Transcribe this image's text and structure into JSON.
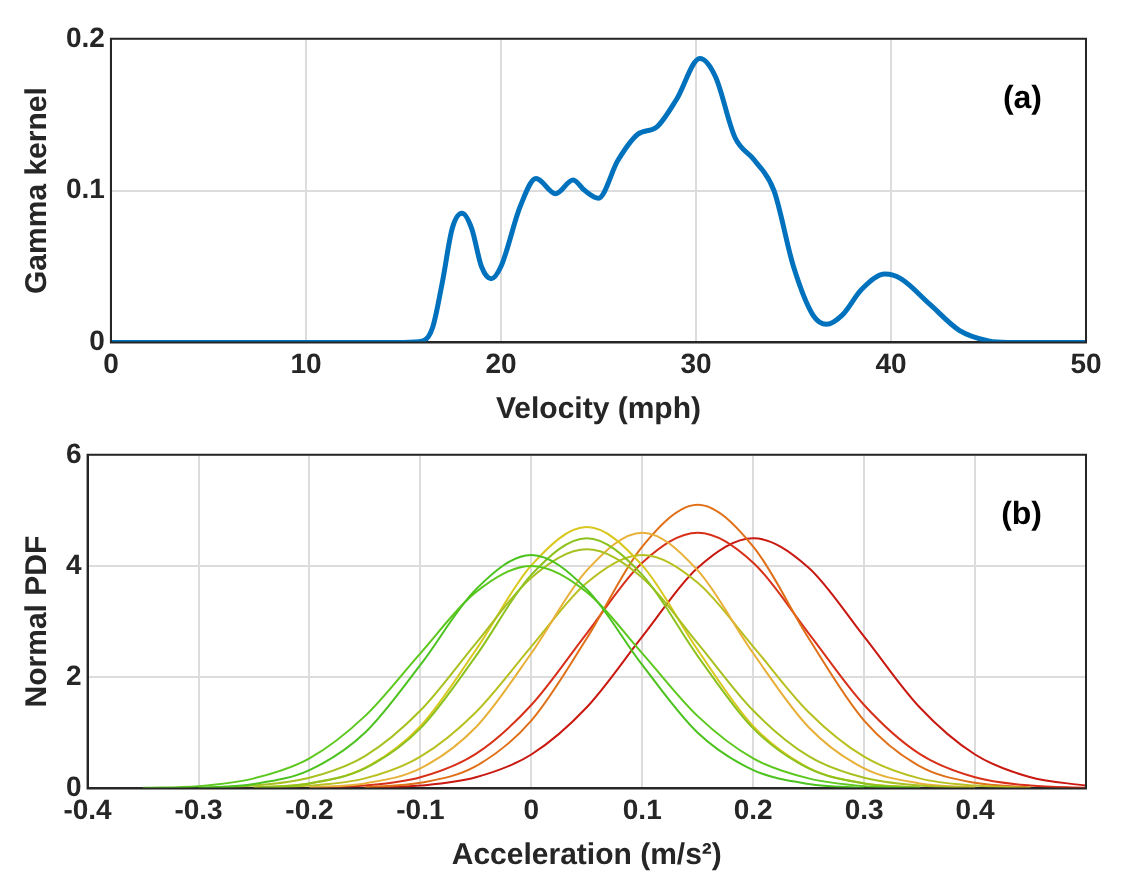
{
  "chart_data": [
    {
      "type": "line",
      "xlabel": "Velocity (mph)",
      "ylabel": "Gamma kernel",
      "annotations": [
        "(a)"
      ],
      "grid": true,
      "legend": false,
      "xlim": [
        0,
        50
      ],
      "xticks": [
        0,
        10,
        20,
        30,
        40,
        50
      ],
      "ylim": [
        0,
        0.2
      ],
      "yticks": [
        0,
        0.1,
        0.2
      ],
      "x": [
        0,
        15,
        16,
        16.5,
        17,
        17.5,
        18,
        18.5,
        19,
        19.5,
        20,
        21,
        21.8,
        22.8,
        23.7,
        24.3,
        25,
        26,
        27,
        28,
        29,
        30.2,
        31,
        32,
        33,
        34,
        35,
        36,
        36.7,
        37.5,
        38.5,
        39.7,
        40.5,
        42,
        43.5,
        45,
        46,
        50
      ],
      "series": [
        {
          "color": "#0072bd",
          "values": [
            0,
            0,
            0.001,
            0.01,
            0.04,
            0.075,
            0.085,
            0.075,
            0.05,
            0.042,
            0.05,
            0.09,
            0.108,
            0.098,
            0.107,
            0.1,
            0.095,
            0.12,
            0.137,
            0.142,
            0.16,
            0.187,
            0.175,
            0.135,
            0.12,
            0.1,
            0.05,
            0.018,
            0.012,
            0.018,
            0.035,
            0.045,
            0.042,
            0.025,
            0.008,
            0.001,
            0,
            0
          ]
        }
      ]
    },
    {
      "type": "line",
      "xlabel": "Acceleration (m/s²)",
      "ylabel": "Normal PDF",
      "annotations": [
        "(b)"
      ],
      "grid": true,
      "legend": false,
      "xlim": [
        -0.4,
        0.5
      ],
      "xticks": [
        -0.4,
        -0.3,
        -0.2,
        -0.1,
        0,
        0.1,
        0.2,
        0.3,
        0.4
      ],
      "ylim": [
        0,
        6
      ],
      "yticks": [
        0,
        2,
        4,
        6
      ],
      "x": [
        -0.35,
        -0.3,
        -0.25,
        -0.2,
        -0.15,
        -0.1,
        -0.05,
        0,
        0.05,
        0.1,
        0.15,
        0.2,
        0.25,
        0.3,
        0.35,
        0.4,
        0.45,
        0.5
      ],
      "series": [
        {
          "color": "#4cc21e",
          "values": [
            null,
            0.01,
            0.08,
            0.33,
            1.0,
            2.22,
            3.58,
            4.2,
            3.58,
            2.22,
            1.0,
            0.33,
            0.08,
            0.01,
            null,
            null,
            null,
            null
          ]
        },
        {
          "color": "#5cc81e",
          "values": [
            0.01,
            0.04,
            0.18,
            0.54,
            1.3,
            2.43,
            3.53,
            4.0,
            3.53,
            2.43,
            1.3,
            0.54,
            0.18,
            0.04,
            0.01,
            null,
            null,
            null
          ]
        },
        {
          "color": "#8cc21e",
          "values": [
            null,
            null,
            0.01,
            0.09,
            0.36,
            1.08,
            2.38,
            3.84,
            4.5,
            3.84,
            2.38,
            1.08,
            0.36,
            0.09,
            0.01,
            null,
            null,
            null
          ]
        },
        {
          "color": "#a8c020",
          "values": [
            null,
            0.01,
            0.05,
            0.19,
            0.58,
            1.4,
            2.61,
            3.79,
            4.3,
            3.79,
            2.61,
            1.4,
            0.58,
            0.19,
            0.05,
            0.01,
            null,
            null
          ]
        },
        {
          "color": "#d8c81e",
          "values": [
            null,
            null,
            0.02,
            0.09,
            0.37,
            1.12,
            2.49,
            4.01,
            4.7,
            4.01,
            2.49,
            1.12,
            0.37,
            0.09,
            0.02,
            null,
            null,
            null
          ]
        },
        {
          "color": "#e8b038",
          "values": [
            null,
            null,
            null,
            0.02,
            0.09,
            0.36,
            1.1,
            2.43,
            3.92,
            4.6,
            3.92,
            2.43,
            1.1,
            0.36,
            0.09,
            0.02,
            null,
            null
          ]
        },
        {
          "color": "#b8c020",
          "values": [
            null,
            null,
            0.01,
            0.05,
            0.18,
            0.57,
            1.37,
            2.55,
            3.7,
            4.2,
            3.7,
            2.55,
            1.37,
            0.57,
            0.18,
            0.05,
            0.01,
            null
          ]
        },
        {
          "color": "#e07018",
          "values": [
            null,
            null,
            null,
            null,
            0.02,
            0.1,
            0.4,
            1.22,
            2.7,
            4.35,
            5.1,
            4.35,
            2.7,
            1.22,
            0.4,
            0.1,
            0.02,
            null
          ]
        },
        {
          "color": "#d83018",
          "values": [
            null,
            null,
            null,
            0.01,
            0.05,
            0.2,
            0.62,
            1.5,
            2.79,
            4.06,
            4.6,
            4.06,
            2.79,
            1.5,
            0.62,
            0.2,
            0.05,
            0.01
          ]
        },
        {
          "color": "#c81810",
          "values": [
            null,
            null,
            null,
            null,
            0.01,
            0.05,
            0.2,
            0.61,
            1.46,
            2.73,
            3.97,
            4.5,
            3.97,
            2.73,
            1.46,
            0.61,
            0.2,
            0.05
          ]
        }
      ]
    }
  ]
}
